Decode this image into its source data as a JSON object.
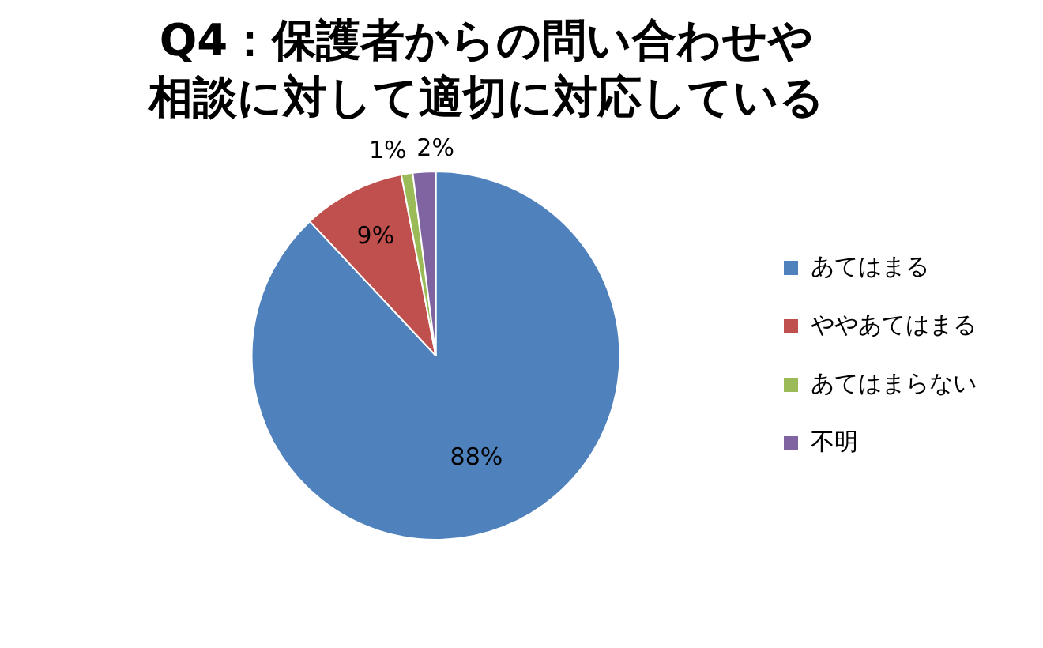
{
  "chart_data": {
    "type": "pie",
    "title": "Q4：保護者からの問い合わせや相談に対して適切に対応している",
    "categories": [
      "あてはまる",
      "ややあてはまる",
      "あてはまらない",
      "不明"
    ],
    "values": [
      88,
      9,
      1,
      2
    ],
    "colors": [
      "#4f81bd",
      "#c0504d",
      "#9bbb59",
      "#8064a2"
    ],
    "value_labels": [
      "88%",
      "9%",
      "1%",
      "2%"
    ],
    "legend": "right"
  }
}
